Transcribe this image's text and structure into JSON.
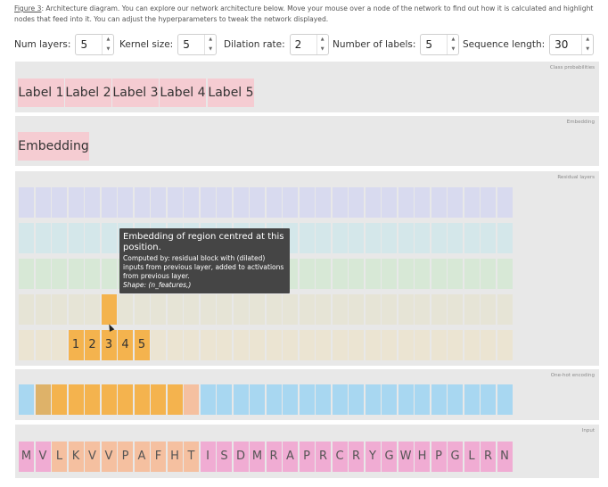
{
  "caption": {
    "figure_ref": "Figure 3",
    "text": ": Architecture diagram. You can explore our network architecture below. Move your mouse over a node of the network to find out how it is calculated and highlight nodes that feed into it. You can adjust the hyperparameters to tweak the network displayed."
  },
  "controls": {
    "num_layers": {
      "label": "Num layers:",
      "value": "5"
    },
    "kernel_size": {
      "label": "Kernel size:",
      "value": "5"
    },
    "dilation_rate": {
      "label": "Dilation rate:",
      "value": "2"
    },
    "num_labels": {
      "label": "Number of labels:",
      "value": "5"
    },
    "sequence_length": {
      "label": "Sequence length:",
      "value": "30"
    },
    "spin_up": "▲",
    "spin_down": "▼"
  },
  "panels": {
    "class_probabilities": {
      "title": "Class probabilities",
      "labels": [
        "Label 1",
        "Label 2",
        "Label 3",
        "Label 4",
        "Label 5"
      ]
    },
    "embedding": {
      "title": "Embedding",
      "node_label": "Embedding"
    },
    "residual_layers": {
      "title": "Residual layers",
      "highlighted_row4_index": 5,
      "row5_numbered": [
        "1",
        "2",
        "3",
        "4",
        "5"
      ]
    },
    "one_hot": {
      "title": "One-hot encoding"
    },
    "input": {
      "title": "Input",
      "sequence": [
        "M",
        "V",
        "L",
        "K",
        "V",
        "V",
        "P",
        "A",
        "F",
        "H",
        "T",
        "I",
        "S",
        "D",
        "M",
        "R",
        "A",
        "P",
        "R",
        "C",
        "R",
        "Y",
        "G",
        "W",
        "H",
        "P",
        "G",
        "L",
        "R",
        "N"
      ]
    }
  },
  "tooltip": {
    "title": "Embedding of region centred at this position.",
    "description": "Computed by: residual block with (dilated) inputs from previous layer, added to activations from previous layer.",
    "shape": "Shape: (n_features,)"
  },
  "colors": {
    "panel_bg": "#e8e8e8",
    "label_pink": "#f5ccd2",
    "residual_row1": "#d8daef",
    "residual_row2": "#d4e7ea",
    "residual_row3": "#d7e8d6",
    "residual_row4": "#e6e4d6",
    "residual_row5": "#ebe4d2",
    "highlight_orange": "#f4b34e",
    "one_hot_blue": "#a8d7f1",
    "one_hot_dark": "#deb269",
    "input_pink": "#f0acd3",
    "input_highlight": "#f5c0a0"
  }
}
